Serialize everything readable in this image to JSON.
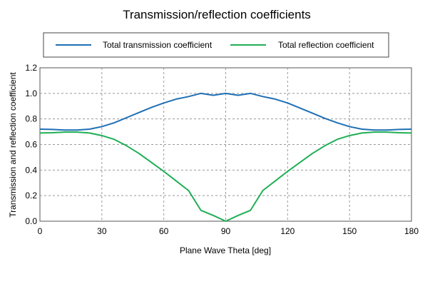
{
  "chart_data": {
    "type": "line",
    "title": "Transmission/reflection coefficients",
    "xlabel": "Plane Wave Theta [deg]",
    "ylabel": "Transmission and reflection coefficient",
    "xlim": [
      0,
      180
    ],
    "ylim": [
      0,
      1.2
    ],
    "xticks": [
      0,
      30,
      60,
      90,
      120,
      150,
      180
    ],
    "yticks": [
      0,
      0.2,
      0.4,
      0.6,
      0.8,
      1.0,
      1.2
    ],
    "xtick_labels": [
      "0",
      "30",
      "60",
      "90",
      "120",
      "150",
      "180"
    ],
    "ytick_labels": [
      "0.0",
      "0.2",
      "0.4",
      "0.6",
      "0.8",
      "1.0",
      "1.2"
    ],
    "grid": true,
    "legend_position": "top",
    "series": [
      {
        "name": "Total transmission coefficient",
        "color": "#1f6fb4",
        "x": [
          0,
          6,
          12,
          18,
          24,
          30,
          36,
          42,
          48,
          54,
          60,
          66,
          72,
          78,
          84,
          90,
          96,
          102,
          108,
          114,
          120,
          126,
          132,
          138,
          144,
          150,
          156,
          162,
          168,
          174,
          180
        ],
        "y": [
          0.72,
          0.718,
          0.713,
          0.713,
          0.72,
          0.74,
          0.77,
          0.81,
          0.85,
          0.89,
          0.925,
          0.955,
          0.975,
          1.0,
          0.985,
          1.0,
          0.985,
          1.0,
          0.975,
          0.955,
          0.925,
          0.885,
          0.845,
          0.805,
          0.77,
          0.74,
          0.72,
          0.713,
          0.713,
          0.718,
          0.72
        ]
      },
      {
        "name": "Total reflection coefficient",
        "color": "#1fae55",
        "x": [
          0,
          6,
          12,
          18,
          24,
          30,
          36,
          42,
          48,
          54,
          60,
          66,
          72,
          78,
          84,
          90,
          96,
          102,
          108,
          114,
          120,
          126,
          132,
          138,
          144,
          150,
          156,
          162,
          168,
          174,
          180
        ],
        "y": [
          0.69,
          0.692,
          0.697,
          0.697,
          0.69,
          0.67,
          0.64,
          0.59,
          0.53,
          0.46,
          0.39,
          0.315,
          0.24,
          0.085,
          0.045,
          0.0,
          0.045,
          0.085,
          0.24,
          0.315,
          0.39,
          0.46,
          0.53,
          0.59,
          0.64,
          0.67,
          0.69,
          0.697,
          0.697,
          0.692,
          0.69
        ]
      }
    ]
  }
}
